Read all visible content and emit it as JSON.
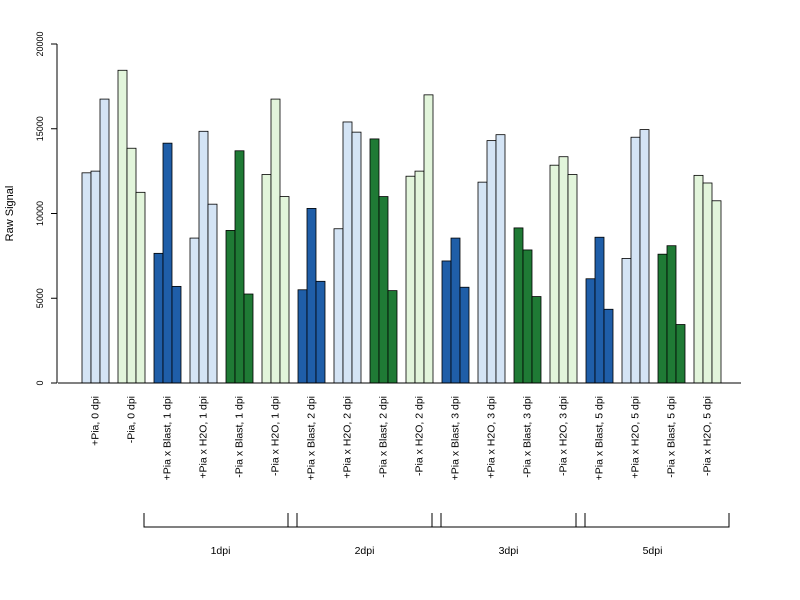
{
  "chart_data": {
    "type": "bar",
    "ylabel": "Raw Signal",
    "xlabel": "",
    "ylim": [
      0,
      20000
    ],
    "yticks": [
      0,
      5000,
      10000,
      15000,
      20000
    ],
    "grid": false,
    "legend": "none",
    "categories": [
      "+Pia, 0 dpi",
      "-Pia, 0 dpi",
      "+Pia x Blast, 1 dpi",
      "+Pia x H2O, 1 dpi",
      "-Pia x Blast, 1 dpi",
      "-Pia x H2O, 1 dpi",
      "+Pia x Blast, 2 dpi",
      "+Pia x H2O, 2 dpi",
      "-Pia x Blast, 2 dpi",
      "-Pia x H2O, 2 dpi",
      "+Pia x Blast, 3 dpi",
      "+Pia x H2O, 3 dpi",
      "-Pia x Blast, 3 dpi",
      "-Pia x H2O, 3 dpi",
      "+Pia x Blast, 5 dpi",
      "+Pia x H2O, 5 dpi",
      "-Pia x Blast, 5 dpi",
      "-Pia x H2O, 5 dpi"
    ],
    "category_colors": [
      "#d4e4f5",
      "#e2f5db",
      "#1f5ea8",
      "#d4e4f5",
      "#1f7a35",
      "#e2f5db",
      "#1f5ea8",
      "#d4e4f5",
      "#1f7a35",
      "#e2f5db",
      "#1f5ea8",
      "#d4e4f5",
      "#1f7a35",
      "#e2f5db",
      "#1f5ea8",
      "#d4e4f5",
      "#1f7a35",
      "#e2f5db"
    ],
    "values": [
      [
        12400,
        12500,
        16750
      ],
      [
        18450,
        13850,
        11250
      ],
      [
        7650,
        14150,
        5700
      ],
      [
        8550,
        14850,
        10550
      ],
      [
        9000,
        13700,
        5250
      ],
      [
        12300,
        16750,
        11000
      ],
      [
        5500,
        10300,
        6000
      ],
      [
        9100,
        15400,
        14800
      ],
      [
        14400,
        11000,
        5450
      ],
      [
        12200,
        12500,
        17000
      ],
      [
        7200,
        8550,
        5650
      ],
      [
        11850,
        14300,
        14650
      ],
      [
        9150,
        7850,
        5100
      ],
      [
        12850,
        13350,
        12300
      ],
      [
        6150,
        8600,
        4350
      ],
      [
        7350,
        14500,
        14950
      ],
      [
        7600,
        8100,
        3450
      ],
      [
        12250,
        11800,
        10750
      ]
    ],
    "groups": [
      {
        "label": "1dpi",
        "first": 2,
        "last": 5
      },
      {
        "label": "2dpi",
        "first": 6,
        "last": 9
      },
      {
        "label": "3dpi",
        "first": 10,
        "last": 13
      },
      {
        "label": "5dpi",
        "first": 14,
        "last": 17
      }
    ]
  }
}
